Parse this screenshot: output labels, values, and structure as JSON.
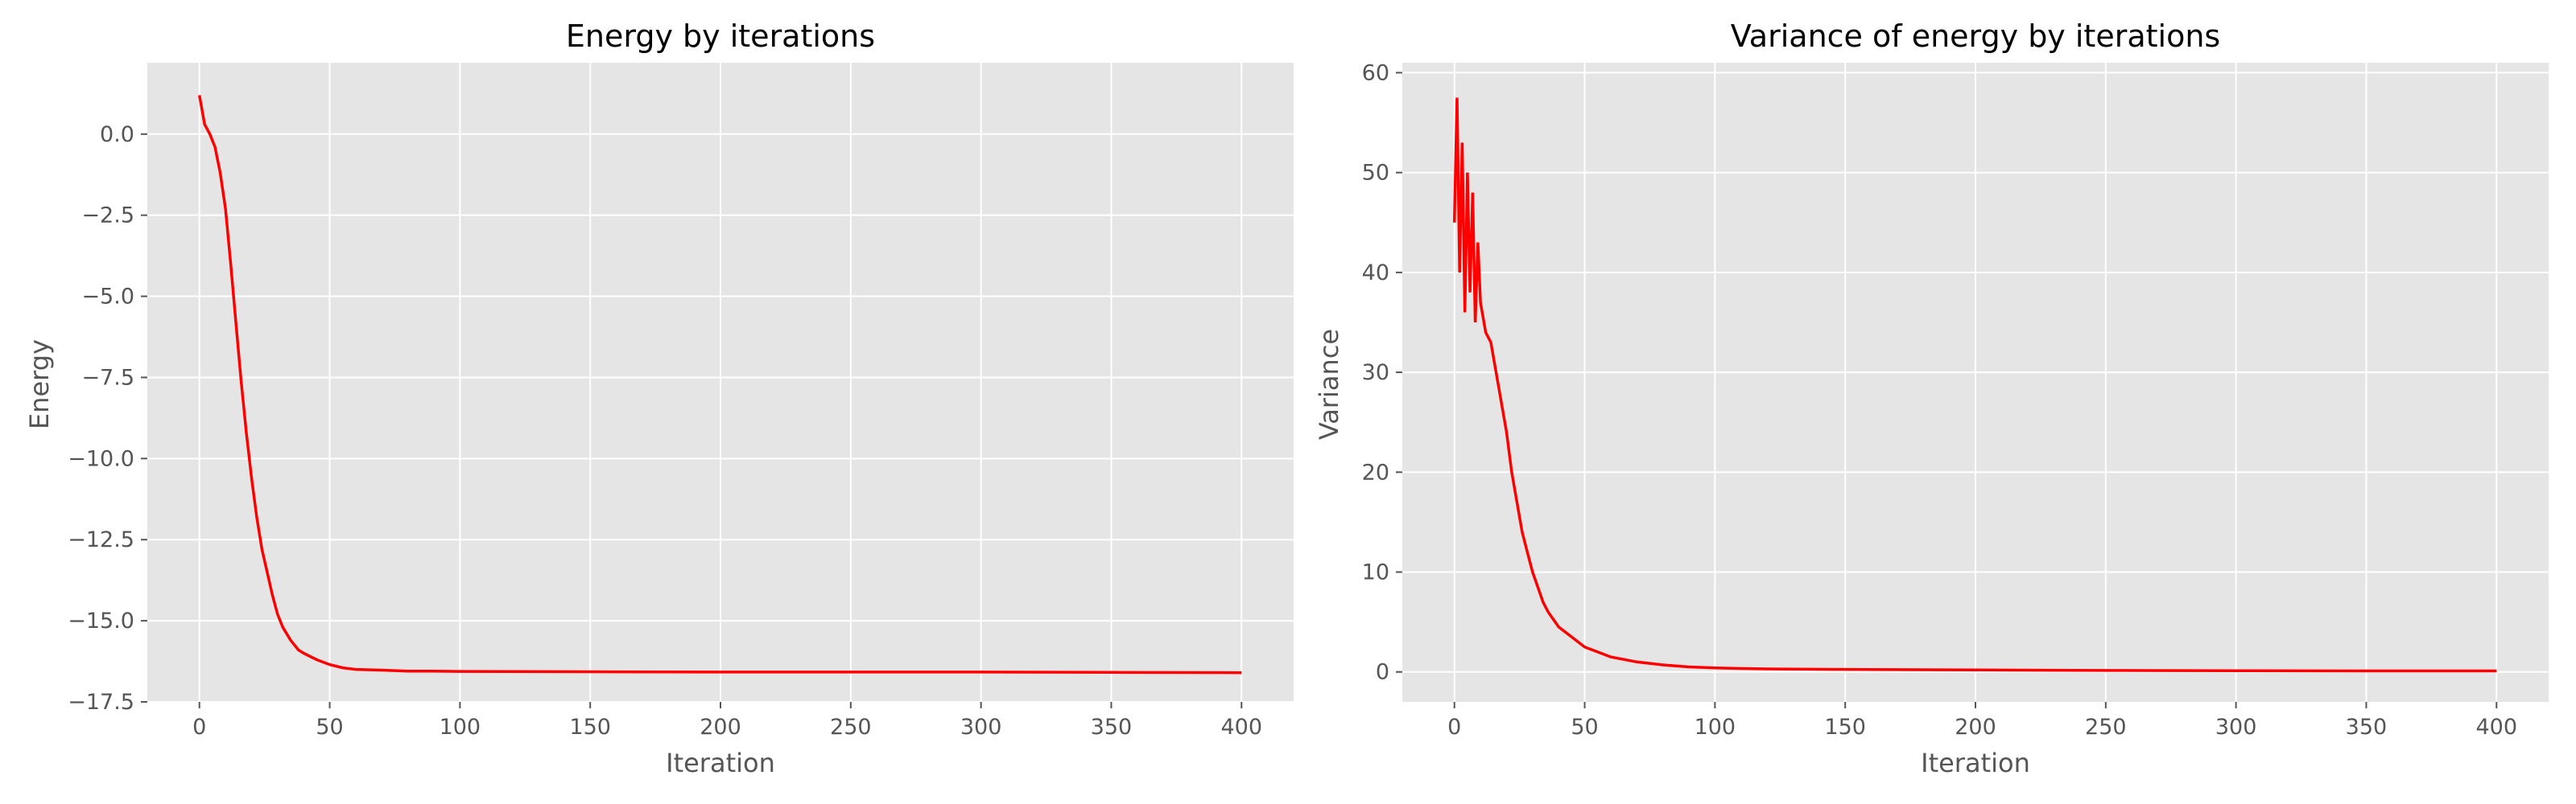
{
  "chart_data": [
    {
      "type": "line",
      "title": "Energy by iterations",
      "xlabel": "Iteration",
      "ylabel": "Energy",
      "xlim": [
        -20,
        420
      ],
      "ylim": [
        -17.5,
        2.2
      ],
      "xticks": [
        0,
        50,
        100,
        150,
        200,
        250,
        300,
        350,
        400
      ],
      "xtick_labels": [
        "0",
        "50",
        "100",
        "150",
        "200",
        "250",
        "300",
        "350",
        "400"
      ],
      "yticks": [
        0.0,
        -2.5,
        -5.0,
        -7.5,
        -10.0,
        -12.5,
        -15.0,
        -17.5
      ],
      "ytick_labels": [
        "0.0",
        "−2.5",
        "−5.0",
        "−7.5",
        "−10.0",
        "−12.5",
        "−15.0",
        "−17.5"
      ],
      "grid": true,
      "series": [
        {
          "color": "#ff0000",
          "x": [
            0,
            2,
            4,
            6,
            8,
            10,
            12,
            14,
            16,
            18,
            20,
            22,
            24,
            26,
            28,
            30,
            32,
            35,
            38,
            40,
            45,
            50,
            55,
            60,
            70,
            80,
            90,
            100,
            150,
            200,
            250,
            300,
            350,
            400
          ],
          "y": [
            1.2,
            0.3,
            0.0,
            -0.4,
            -1.2,
            -2.3,
            -4.0,
            -5.8,
            -7.6,
            -9.2,
            -10.6,
            -11.8,
            -12.8,
            -13.5,
            -14.2,
            -14.8,
            -15.2,
            -15.6,
            -15.9,
            -16.0,
            -16.2,
            -16.35,
            -16.45,
            -16.5,
            -16.52,
            -16.55,
            -16.55,
            -16.56,
            -16.57,
            -16.58,
            -16.58,
            -16.58,
            -16.59,
            -16.6
          ]
        }
      ]
    },
    {
      "type": "line",
      "title": "Variance of energy by iterations",
      "xlabel": "Iteration",
      "ylabel": "Variance",
      "xlim": [
        -20,
        420
      ],
      "ylim": [
        -3,
        61
      ],
      "xticks": [
        0,
        50,
        100,
        150,
        200,
        250,
        300,
        350,
        400
      ],
      "xtick_labels": [
        "0",
        "50",
        "100",
        "150",
        "200",
        "250",
        "300",
        "350",
        "400"
      ],
      "yticks": [
        0,
        10,
        20,
        30,
        40,
        50,
        60
      ],
      "ytick_labels": [
        "0",
        "10",
        "20",
        "30",
        "40",
        "50",
        "60"
      ],
      "grid": true,
      "series": [
        {
          "color": "#ff0000",
          "x": [
            0,
            1,
            2,
            3,
            4,
            5,
            6,
            7,
            8,
            9,
            10,
            12,
            14,
            16,
            18,
            20,
            22,
            24,
            26,
            28,
            30,
            32,
            34,
            36,
            40,
            45,
            50,
            55,
            60,
            70,
            80,
            90,
            100,
            120,
            150,
            200,
            250,
            300,
            350,
            400
          ],
          "y": [
            45,
            57.5,
            40,
            53,
            36,
            50,
            38,
            48,
            35,
            43,
            37,
            34,
            33,
            30,
            27,
            24,
            20,
            17,
            14,
            12,
            10,
            8.5,
            7,
            6,
            4.5,
            3.5,
            2.5,
            2,
            1.5,
            1.0,
            0.7,
            0.5,
            0.4,
            0.3,
            0.25,
            0.2,
            0.15,
            0.12,
            0.1,
            0.1
          ]
        }
      ]
    }
  ]
}
